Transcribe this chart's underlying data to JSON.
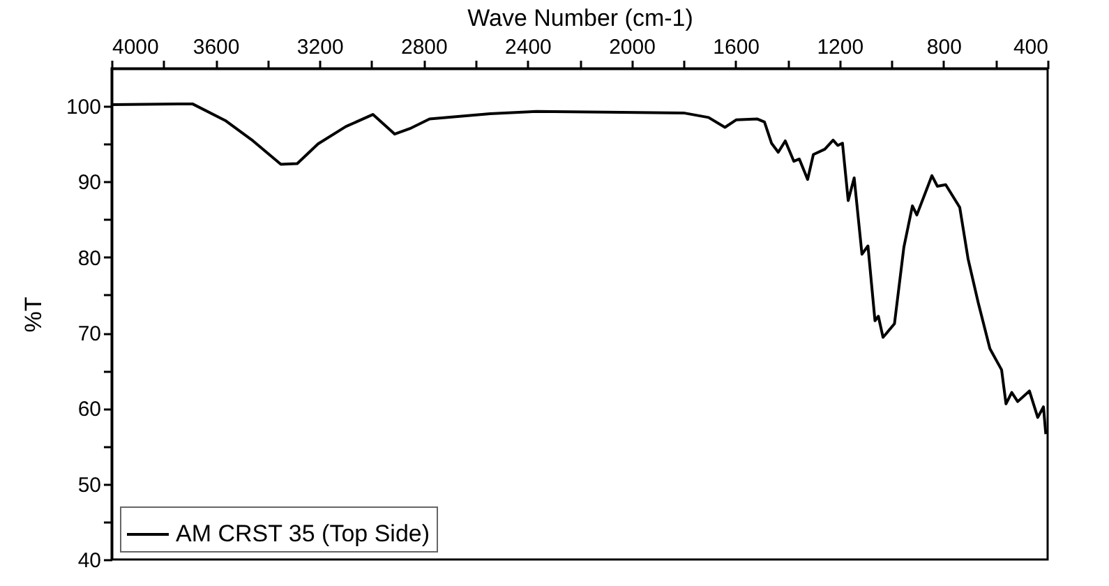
{
  "chart_data": {
    "type": "line",
    "xlabel": "Wave Number (cm-1)",
    "ylabel": "%T",
    "xlim": [
      4000,
      400
    ],
    "ylim": [
      40,
      105
    ],
    "xticks": [
      4000,
      {
        "value": 3800,
        "label": null
      },
      3600,
      {
        "value": 3400,
        "label": null
      },
      3200,
      {
        "value": 3000,
        "label": null
      },
      2800,
      {
        "value": 2600,
        "label": null
      },
      2400,
      {
        "value": 2200,
        "label": null
      },
      2000,
      {
        "value": 1800,
        "label": null
      },
      1600,
      {
        "value": 1400,
        "label": null
      },
      1200,
      {
        "value": 1000,
        "label": null
      },
      800,
      {
        "value": 600,
        "label": null
      },
      400
    ],
    "yticks": [
      40,
      {
        "value": 45,
        "label": null
      },
      50,
      {
        "value": 55,
        "label": null
      },
      60,
      {
        "value": 65,
        "label": null
      },
      70,
      {
        "value": 75,
        "label": null
      },
      80,
      {
        "value": 85,
        "label": null
      },
      90,
      {
        "value": 95,
        "label": null
      },
      100
    ],
    "grid": false,
    "legend": "bottom left",
    "marker": "none",
    "line_style": "solid",
    "series": [
      {
        "name": "AM CRST 35 (Top Side)",
        "color": "#000000",
        "x": [
          4000,
          3689,
          3563,
          3456,
          3349,
          3286,
          3206,
          3099,
          2995,
          2911,
          2848,
          2777,
          2544,
          2365,
          2100,
          1800,
          1704,
          1641,
          1597,
          1516,
          1489,
          1462,
          1436,
          1409,
          1376,
          1355,
          1323,
          1301,
          1257,
          1225,
          1207,
          1189,
          1167,
          1144,
          1114,
          1091,
          1064,
          1051,
          1033,
          989,
          953,
          920,
          903,
          845,
          824,
          792,
          738,
          706,
          667,
          622,
          577,
          560,
          538,
          515,
          470,
          438,
          416,
          407
        ],
        "values": [
          100.2,
          100.3,
          98.1,
          95.4,
          92.3,
          92.4,
          95.0,
          97.3,
          98.9,
          96.3,
          97.1,
          98.3,
          99.0,
          99.3,
          99.2,
          99.1,
          98.5,
          97.2,
          98.2,
          98.3,
          97.9,
          95.1,
          93.9,
          95.4,
          92.7,
          93.0,
          90.3,
          93.6,
          94.3,
          95.5,
          94.8,
          95.1,
          87.5,
          90.5,
          80.4,
          81.5,
          71.6,
          72.2,
          69.4,
          71.2,
          81.3,
          86.8,
          85.6,
          90.8,
          89.4,
          89.6,
          86.6,
          79.8,
          74.0,
          67.9,
          65.1,
          60.6,
          62.1,
          60.9,
          62.3,
          58.8,
          60.2,
          56.6
        ]
      }
    ]
  }
}
